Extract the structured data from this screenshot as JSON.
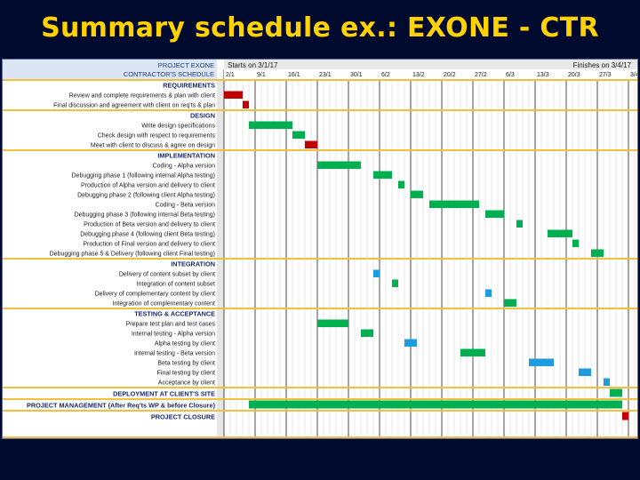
{
  "slide": {
    "title": "Summary schedule ex.: EXONE - CTR"
  },
  "chart_data": {
    "type": "gantt",
    "header": {
      "project": "PROJECT EXONE",
      "schedule": "CONTRACTOR'S SCHEDULE",
      "starts": "Starts on 3/1/17",
      "finishes": "Finishes on 3/4/17"
    },
    "date_labels": [
      "2/1",
      "9/1",
      "16/1",
      "23/1",
      "30/1",
      "6/2",
      "13/2",
      "20/2",
      "27/2",
      "6/3",
      "13/3",
      "20/3",
      "27/3",
      "3/4"
    ],
    "tasks": [
      {
        "label": "REQUIREMENTS",
        "kind": "section"
      },
      {
        "label": "Review and complete requirements & plan with client",
        "kind": "task",
        "start": 0,
        "end": 3,
        "color": "#c00000"
      },
      {
        "label": "Final discussion and agreement with client on req'ts & plan",
        "kind": "task",
        "start": 3,
        "end": 4,
        "color": "#c00000"
      },
      {
        "label": "DESIGN",
        "kind": "section"
      },
      {
        "label": "Write design specifications",
        "kind": "task",
        "start": 4,
        "end": 11,
        "color": "#00b050"
      },
      {
        "label": "Check design with respect to requirements",
        "kind": "task",
        "start": 11,
        "end": 13,
        "color": "#00b050"
      },
      {
        "label": "Meet with client to discuss & agree on design",
        "kind": "task",
        "start": 13,
        "end": 15,
        "color": "#c00000"
      },
      {
        "label": "IMPLEMENTATION",
        "kind": "section"
      },
      {
        "label": "Coding - Alpha version",
        "kind": "task",
        "start": 15,
        "end": 22,
        "color": "#00b050"
      },
      {
        "label": "Debugging phase 1 (following internal Alpha testing)",
        "kind": "task",
        "start": 24,
        "end": 27,
        "color": "#00b050"
      },
      {
        "label": "Production of Alpha version and delivery to client",
        "kind": "task",
        "start": 28,
        "end": 29,
        "color": "#00b050"
      },
      {
        "label": "Debugging phase 2 (following client Alpha testing)",
        "kind": "task",
        "start": 30,
        "end": 32,
        "color": "#00b050"
      },
      {
        "label": "Coding - Beta version",
        "kind": "task",
        "start": 33,
        "end": 41,
        "color": "#00b050"
      },
      {
        "label": "Debugging phase 3 (following internal Beta testing)",
        "kind": "task",
        "start": 42,
        "end": 45,
        "color": "#00b050"
      },
      {
        "label": "Production of Beta version and delivery to client",
        "kind": "task",
        "start": 47,
        "end": 48,
        "color": "#00b050"
      },
      {
        "label": "Debugging phase 4 (following client Beta testing)",
        "kind": "task",
        "start": 52,
        "end": 56,
        "color": "#00b050"
      },
      {
        "label": "Production of Final version and delivery to client",
        "kind": "task",
        "start": 56,
        "end": 57,
        "color": "#00b050"
      },
      {
        "label": "Debugging phase 5 & Delivery (following client Final testing)",
        "kind": "task",
        "start": 59,
        "end": 61,
        "color": "#00b050"
      },
      {
        "label": "INTEGRATION",
        "kind": "section"
      },
      {
        "label": "Delivery of content subset by client",
        "kind": "task",
        "start": 24,
        "end": 25,
        "color": "#1f9be0"
      },
      {
        "label": "Integration of content subset",
        "kind": "task",
        "start": 27,
        "end": 28,
        "color": "#00b050"
      },
      {
        "label": "Delivery of complementary content by client",
        "kind": "task",
        "start": 42,
        "end": 43,
        "color": "#1f9be0"
      },
      {
        "label": "Integration of complementary content",
        "kind": "task",
        "start": 45,
        "end": 47,
        "color": "#00b050"
      },
      {
        "label": "TESTING & ACCEPTANCE",
        "kind": "section"
      },
      {
        "label": "Prepare test plan and test cases",
        "kind": "task",
        "start": 15,
        "end": 20,
        "color": "#00b050"
      },
      {
        "label": "Internal testing - Alpha version",
        "kind": "task",
        "start": 22,
        "end": 24,
        "color": "#00b050"
      },
      {
        "label": "Alpha testing by client",
        "kind": "task",
        "start": 29,
        "end": 31,
        "color": "#1f9be0"
      },
      {
        "label": "Internal testing - Beta version",
        "kind": "task",
        "start": 38,
        "end": 42,
        "color": "#00b050"
      },
      {
        "label": "Beta testing by client",
        "kind": "task",
        "start": 49,
        "end": 53,
        "color": "#1f9be0"
      },
      {
        "label": "Final testing by client",
        "kind": "task",
        "start": 57,
        "end": 59,
        "color": "#1f9be0"
      },
      {
        "label": "Acceptance by client",
        "kind": "task",
        "start": 61,
        "end": 62,
        "color": "#1f9be0"
      },
      {
        "label": "DEPLOYMENT AT CLIENT'S SITE",
        "kind": "section",
        "bar": {
          "start": 62,
          "end": 64,
          "color": "#00b050"
        }
      },
      {
        "label": "PROJECT MANAGEMENT (After Req'ts WP & before Closure)",
        "kind": "section",
        "bar": {
          "start": 4,
          "end": 64,
          "color": "#00b050"
        }
      },
      {
        "label": "PROJECT CLOSURE",
        "kind": "section",
        "bar": {
          "start": 64,
          "end": 65,
          "color": "#c00000"
        }
      }
    ]
  }
}
